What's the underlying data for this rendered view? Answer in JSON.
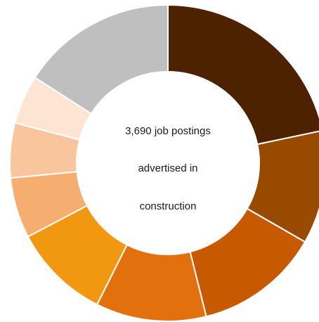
{
  "chart_data": {
    "type": "pie",
    "donut": true,
    "center_text": [
      "3,690 job postings",
      "advertised in",
      "construction"
    ],
    "slices": [
      {
        "value": 21.7,
        "color": "#4d2200"
      },
      {
        "value": 11.6,
        "color": "#974a00"
      },
      {
        "value": 12.8,
        "color": "#c75a00"
      },
      {
        "value": 11.3,
        "color": "#e2700d"
      },
      {
        "value": 9.9,
        "color": "#f29710"
      },
      {
        "value": 6.2,
        "color": "#f6ae70"
      },
      {
        "value": 5.6,
        "color": "#f9c59d"
      },
      {
        "value": 5.0,
        "color": "#fde4d3"
      },
      {
        "value": 15.9,
        "color": "#bfbfbf"
      }
    ],
    "start_angle_deg": 0,
    "direction": "clockwise",
    "slice_border_color": "#ffffff"
  }
}
